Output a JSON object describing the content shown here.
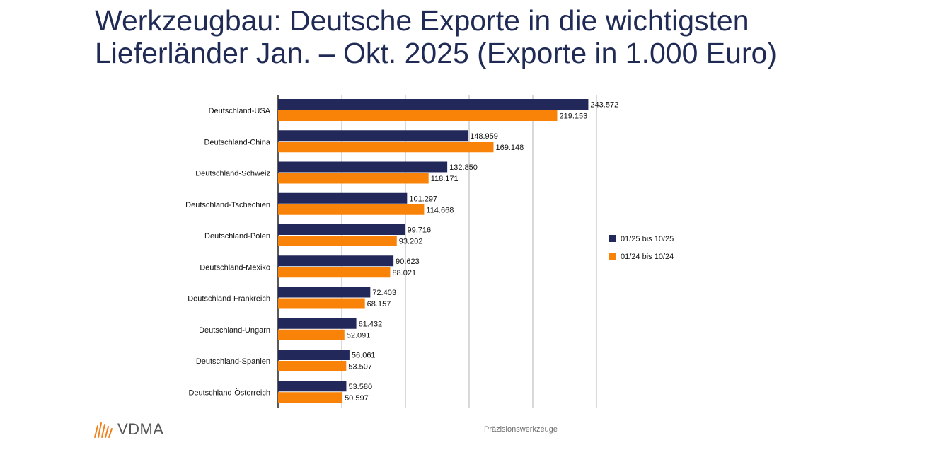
{
  "header": {
    "title_line1": "Werkzeugbau: Deutsche Exporte in die wichtigsten",
    "title_line2": "Lieferländer Jan. – Okt. 2025 (Exporte in 1.000 Euro)"
  },
  "chart_data": {
    "type": "bar",
    "orientation": "horizontal",
    "title": "",
    "xlabel": "",
    "ylabel": "",
    "xlim": [
      0,
      250000
    ],
    "grid": true,
    "legend_position": "right",
    "categories": [
      "Deutschland-USA",
      "Deutschland-China",
      "Deutschland-Schweiz",
      "Deutschland-Tschechien",
      "Deutschland-Polen",
      "Deutschland-Mexiko",
      "Deutschland-Frankreich",
      "Deutschland-Ungarn",
      "Deutschland-Spanien",
      "Deutschland-Österreich"
    ],
    "series": [
      {
        "name": "01/25 bis 10/25",
        "color": "#23285a",
        "values": [
          243572,
          148959,
          132850,
          101297,
          99716,
          90623,
          72403,
          61432,
          56061,
          53580
        ],
        "labels": [
          "243.572",
          "148.959",
          "132.850",
          "101.297",
          "99.716",
          "90.623",
          "72.403",
          "61.432",
          "56.061",
          "53.580"
        ]
      },
      {
        "name": "01/24 bis 10/24",
        "color": "#f98309",
        "values": [
          219153,
          169148,
          118171,
          114668,
          93202,
          88021,
          68157,
          52091,
          53507,
          50597
        ],
        "labels": [
          "219.153",
          "169.148",
          "118.171",
          "114.668",
          "93.202",
          "88.021",
          "68.157",
          "52.091",
          "53.507",
          "50.597"
        ]
      }
    ]
  },
  "footer": {
    "logo_text": "VDMA",
    "logo_icon": "vdma-stripes-icon",
    "caption": "Präzisionswerkzeuge"
  }
}
